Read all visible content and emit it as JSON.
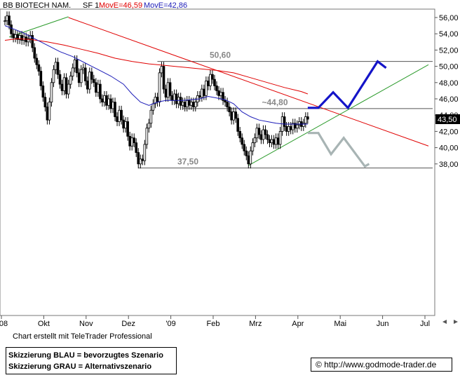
{
  "header": {
    "title": "BB BIOTECH NAM.",
    "sf": "SF 1",
    "mov_red_label": "MovE=46,59",
    "mov_blue_label": "MovE=42,86",
    "colors": {
      "red": "#e00000",
      "blue": "#1c1cb8"
    }
  },
  "footer": {
    "credit": "Chart erstellt mit TeleTrader Professional",
    "legend_lines": [
      "Skizzierung BLAU = bevorzugtes Szenario",
      "Skizzierung GRAU = Alternativszenario"
    ],
    "copyright_symbol": "©",
    "url": "http://www.godmode-trader.de"
  },
  "chart_data": {
    "type": "candlestick",
    "title": "BB BIOTECH NAM.",
    "y_axis": {
      "ticks": [
        "56,00",
        "54,00",
        "52,00",
        "50,00",
        "48,00",
        "46,00",
        "44,00",
        "42,00",
        "40,00",
        "38,00"
      ],
      "ylim": [
        35.5,
        56.8
      ],
      "current_price_label": "43,50",
      "current_price": 43.5
    },
    "x_axis": {
      "ticks": [
        "'08",
        "Okt",
        "Nov",
        "Dez",
        "'09",
        "Feb",
        "Mrz",
        "Apr",
        "Mai",
        "Jun",
        "Jul"
      ],
      "tick_months": [
        0,
        1,
        2,
        3,
        4,
        5,
        6,
        7,
        8,
        9,
        10
      ]
    },
    "price_close_series": [
      [
        0.0,
        55.6
      ],
      [
        0.05,
        56.2
      ],
      [
        0.1,
        55.1
      ],
      [
        0.15,
        54.0
      ],
      [
        0.2,
        53.5
      ],
      [
        0.25,
        53.9
      ],
      [
        0.3,
        53.3
      ],
      [
        0.35,
        53.8
      ],
      [
        0.4,
        53.2
      ],
      [
        0.45,
        53.6
      ],
      [
        0.5,
        53.0
      ],
      [
        0.55,
        53.4
      ],
      [
        0.6,
        53.8
      ],
      [
        0.65,
        52.3
      ],
      [
        0.7,
        51.0
      ],
      [
        0.75,
        50.2
      ],
      [
        0.8,
        49.4
      ],
      [
        0.85,
        47.6
      ],
      [
        0.9,
        46.2
      ],
      [
        0.95,
        45.0
      ],
      [
        1.0,
        43.4
      ],
      [
        1.05,
        45.6
      ],
      [
        1.1,
        48.0
      ],
      [
        1.15,
        49.6
      ],
      [
        1.2,
        50.5
      ],
      [
        1.25,
        49.0
      ],
      [
        1.3,
        47.8
      ],
      [
        1.35,
        47.0
      ],
      [
        1.4,
        48.6
      ],
      [
        1.45,
        46.6
      ],
      [
        1.5,
        47.8
      ],
      [
        1.55,
        48.8
      ],
      [
        1.6,
        49.8
      ],
      [
        1.65,
        50.8
      ],
      [
        1.7,
        49.2
      ],
      [
        1.75,
        48.0
      ],
      [
        1.8,
        49.6
      ],
      [
        1.85,
        49.8
      ],
      [
        1.9,
        48.2
      ],
      [
        1.95,
        47.2
      ],
      [
        2.0,
        49.3
      ],
      [
        2.05,
        48.4
      ],
      [
        2.1,
        48.0
      ],
      [
        2.15,
        46.8
      ],
      [
        2.2,
        47.8
      ],
      [
        2.25,
        46.0
      ],
      [
        2.3,
        45.6
      ],
      [
        2.35,
        46.4
      ],
      [
        2.4,
        45.2
      ],
      [
        2.45,
        46.0
      ],
      [
        2.5,
        44.8
      ],
      [
        2.55,
        45.6
      ],
      [
        2.6,
        43.8
      ],
      [
        2.65,
        43.2
      ],
      [
        2.7,
        44.6
      ],
      [
        2.75,
        43.4
      ],
      [
        2.8,
        42.4
      ],
      [
        2.85,
        43.2
      ],
      [
        2.9,
        41.4
      ],
      [
        2.95,
        40.2
      ],
      [
        3.0,
        41.2
      ],
      [
        3.05,
        40.6
      ],
      [
        3.1,
        39.4
      ],
      [
        3.15,
        38.0
      ],
      [
        3.2,
        38.6
      ],
      [
        3.25,
        38.4
      ],
      [
        3.3,
        40.4
      ],
      [
        3.35,
        42.4
      ],
      [
        3.4,
        43.0
      ],
      [
        3.45,
        44.6
      ],
      [
        3.5,
        45.4
      ],
      [
        3.55,
        46.2
      ],
      [
        3.6,
        45.6
      ],
      [
        3.65,
        49.2
      ],
      [
        3.7,
        50.0
      ],
      [
        3.75,
        47.2
      ],
      [
        3.8,
        46.2
      ],
      [
        3.85,
        48.0
      ],
      [
        3.9,
        46.4
      ],
      [
        3.95,
        45.8
      ],
      [
        4.0,
        46.6
      ],
      [
        4.05,
        45.4
      ],
      [
        4.1,
        46.2
      ],
      [
        4.15,
        45.2
      ],
      [
        4.2,
        45.6
      ],
      [
        4.25,
        45.0
      ],
      [
        4.3,
        45.8
      ],
      [
        4.35,
        45.2
      ],
      [
        4.4,
        45.6
      ],
      [
        4.45,
        45.0
      ],
      [
        4.5,
        45.6
      ],
      [
        4.55,
        46.4
      ],
      [
        4.6,
        46.2
      ],
      [
        4.65,
        47.2
      ],
      [
        4.7,
        46.4
      ],
      [
        4.75,
        48.2
      ],
      [
        4.8,
        47.6
      ],
      [
        4.85,
        49.0
      ],
      [
        4.9,
        48.4
      ],
      [
        4.95,
        47.6
      ],
      [
        5.0,
        47.0
      ],
      [
        5.05,
        46.4
      ],
      [
        5.1,
        46.8
      ],
      [
        5.15,
        45.8
      ],
      [
        5.2,
        45.6
      ],
      [
        5.25,
        45.0
      ],
      [
        5.3,
        44.4
      ],
      [
        5.35,
        43.4
      ],
      [
        5.4,
        44.4
      ],
      [
        5.45,
        43.6
      ],
      [
        5.5,
        42.0
      ],
      [
        5.55,
        41.2
      ],
      [
        5.6,
        40.4
      ],
      [
        5.65,
        39.6
      ],
      [
        5.7,
        39.0
      ],
      [
        5.75,
        38.0
      ],
      [
        5.8,
        39.6
      ],
      [
        5.85,
        40.6
      ],
      [
        5.9,
        41.2
      ],
      [
        5.95,
        42.4
      ],
      [
        6.0,
        41.6
      ],
      [
        6.05,
        41.0
      ],
      [
        6.1,
        42.2
      ],
      [
        6.15,
        41.6
      ],
      [
        6.2,
        41.0
      ],
      [
        6.25,
        40.6
      ],
      [
        6.3,
        41.0
      ],
      [
        6.35,
        40.4
      ],
      [
        6.4,
        41.2
      ],
      [
        6.45,
        40.4
      ],
      [
        6.5,
        42.0
      ],
      [
        6.55,
        43.8
      ],
      [
        6.6,
        42.6
      ],
      [
        6.65,
        42.0
      ],
      [
        6.7,
        42.6
      ],
      [
        6.75,
        42.2
      ],
      [
        6.8,
        43.0
      ],
      [
        6.85,
        42.4
      ],
      [
        6.9,
        42.8
      ],
      [
        6.95,
        43.2
      ],
      [
        7.0,
        42.6
      ],
      [
        7.05,
        43.0
      ],
      [
        7.1,
        43.8
      ],
      [
        7.15,
        43.5
      ]
    ],
    "moving_average_red": [
      [
        0.0,
        53.2
      ],
      [
        0.3,
        53.4
      ],
      [
        0.6,
        53.3
      ],
      [
        1.0,
        53.0
      ],
      [
        1.4,
        52.6
      ],
      [
        1.8,
        52.1
      ],
      [
        2.2,
        51.6
      ],
      [
        2.6,
        51.0
      ],
      [
        3.0,
        50.6
      ],
      [
        3.4,
        50.3
      ],
      [
        3.8,
        50.1
      ],
      [
        4.2,
        49.9
      ],
      [
        4.6,
        49.7
      ],
      [
        5.0,
        49.5
      ],
      [
        5.4,
        49.2
      ],
      [
        5.8,
        48.6
      ],
      [
        6.2,
        48.0
      ],
      [
        6.6,
        47.4
      ],
      [
        7.0,
        46.9
      ],
      [
        7.15,
        46.6
      ]
    ],
    "moving_average_blue": [
      [
        0.0,
        55.0
      ],
      [
        0.2,
        54.6
      ],
      [
        0.4,
        54.2
      ],
      [
        0.7,
        53.4
      ],
      [
        1.0,
        52.6
      ],
      [
        1.3,
        51.8
      ],
      [
        1.6,
        51.2
      ],
      [
        1.9,
        50.4
      ],
      [
        2.2,
        49.6
      ],
      [
        2.5,
        48.8
      ],
      [
        2.8,
        47.8
      ],
      [
        3.0,
        46.6
      ],
      [
        3.2,
        45.6
      ],
      [
        3.4,
        45.2
      ],
      [
        3.6,
        45.6
      ],
      [
        3.8,
        45.8
      ],
      [
        4.0,
        45.8
      ],
      [
        4.2,
        45.8
      ],
      [
        4.4,
        45.9
      ],
      [
        4.6,
        46.0
      ],
      [
        4.8,
        46.3
      ],
      [
        5.0,
        46.1
      ],
      [
        5.2,
        45.9
      ],
      [
        5.4,
        45.4
      ],
      [
        5.6,
        44.4
      ],
      [
        5.8,
        43.8
      ],
      [
        6.0,
        43.4
      ],
      [
        6.2,
        43.2
      ],
      [
        6.4,
        43.0
      ],
      [
        6.6,
        42.9
      ],
      [
        6.8,
        42.9
      ],
      [
        7.0,
        42.9
      ],
      [
        7.15,
        42.9
      ]
    ],
    "trendlines": [
      {
        "color": "#e00000",
        "points": [
          [
            1.5,
            56.0
          ],
          [
            10.0,
            40.2
          ]
        ]
      },
      {
        "color": "#2a9a2a",
        "points": [
          [
            5.75,
            37.8
          ],
          [
            10.0,
            50.2
          ]
        ]
      },
      {
        "color": "#2a9a2a",
        "points": [
          [
            0.1,
            53.6
          ],
          [
            1.5,
            56.1
          ]
        ]
      }
    ],
    "horizontal_levels": [
      {
        "value": 50.6,
        "label": "50,60",
        "x_start": 3.6
      },
      {
        "value": 44.8,
        "label": "~44,80",
        "x_start": 4.2
      },
      {
        "value": 37.5,
        "label": "37,50",
        "x_start": 3.15
      }
    ],
    "scenario_blue": {
      "color": "#1414c8",
      "points": [
        [
          7.15,
          44.9
        ],
        [
          7.4,
          44.9
        ],
        [
          7.75,
          46.8
        ],
        [
          8.1,
          44.9
        ],
        [
          8.8,
          50.6
        ],
        [
          9.0,
          49.8
        ]
      ]
    },
    "scenario_gray": {
      "color": "#a8b4b4",
      "points": [
        [
          7.15,
          41.8
        ],
        [
          7.4,
          41.8
        ],
        [
          7.7,
          39.2
        ],
        [
          8.0,
          41.2
        ],
        [
          8.5,
          37.7
        ],
        [
          8.6,
          38.0
        ]
      ]
    }
  }
}
